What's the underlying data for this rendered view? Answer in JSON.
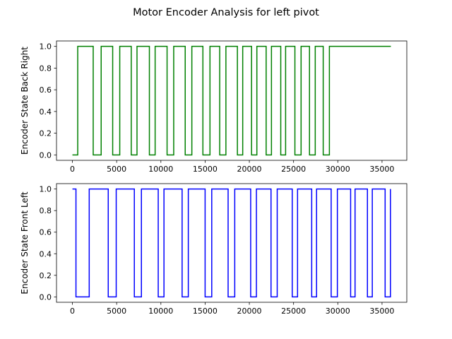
{
  "title": "Motor Encoder Analysis for left pivot",
  "chart_data": [
    {
      "type": "line",
      "step": true,
      "ylabel": "Encoder State Back Right",
      "xlim": [
        -1800,
        37800
      ],
      "ylim": [
        -0.05,
        1.05
      ],
      "xticks": [
        0,
        5000,
        10000,
        15000,
        20000,
        25000,
        30000,
        35000
      ],
      "yticks": [
        0.0,
        0.2,
        0.4,
        0.6,
        0.8,
        1.0
      ],
      "xtick_labels": [
        "0",
        "5000",
        "10000",
        "15000",
        "20000",
        "25000",
        "30000",
        "35000"
      ],
      "ytick_labels": [
        "0.0",
        "0.2",
        "0.4",
        "0.6",
        "0.8",
        "1.0"
      ],
      "grid": false,
      "series": [
        {
          "color": "#008000",
          "x": [
            0,
            600,
            600,
            2350,
            2350,
            3250,
            3250,
            4550,
            4550,
            5350,
            5350,
            6650,
            6650,
            7300,
            7300,
            8700,
            8700,
            9350,
            9350,
            10700,
            10700,
            11450,
            11450,
            12750,
            12750,
            13500,
            13500,
            14750,
            14750,
            15550,
            15550,
            16650,
            16650,
            17350,
            17350,
            18650,
            18650,
            19250,
            19250,
            20250,
            20250,
            20850,
            20850,
            21900,
            21900,
            22500,
            22500,
            23550,
            23550,
            24100,
            24100,
            25150,
            25150,
            25850,
            25850,
            26800,
            26800,
            27450,
            27450,
            28350,
            28350,
            29050,
            29050,
            30000,
            30000,
            36000
          ],
          "y": [
            0,
            0,
            1,
            1,
            0,
            0,
            1,
            1,
            0,
            0,
            1,
            1,
            0,
            0,
            1,
            1,
            0,
            0,
            1,
            1,
            0,
            0,
            1,
            1,
            0,
            0,
            1,
            1,
            0,
            0,
            1,
            1,
            0,
            0,
            1,
            1,
            0,
            0,
            1,
            1,
            0,
            0,
            1,
            1,
            0,
            0,
            1,
            1,
            0,
            0,
            1,
            1,
            0,
            0,
            1,
            1,
            0,
            0,
            1,
            1,
            0,
            0,
            1,
            1,
            1,
            1
          ]
        }
      ]
    },
    {
      "type": "line",
      "step": true,
      "ylabel": "Encoder State Front Left",
      "xlim": [
        -1800,
        37800
      ],
      "ylim": [
        -0.05,
        1.05
      ],
      "xticks": [
        0,
        5000,
        10000,
        15000,
        20000,
        25000,
        30000,
        35000
      ],
      "yticks": [
        0.0,
        0.2,
        0.4,
        0.6,
        0.8,
        1.0
      ],
      "xtick_labels": [
        "0",
        "5000",
        "10000",
        "15000",
        "20000",
        "25000",
        "30000",
        "35000"
      ],
      "ytick_labels": [
        "0.0",
        "0.2",
        "0.4",
        "0.6",
        "0.8",
        "1.0"
      ],
      "grid": false,
      "series": [
        {
          "color": "#0000ff",
          "x": [
            0,
            400,
            400,
            1900,
            1900,
            4050,
            4050,
            4950,
            4950,
            7000,
            7000,
            7800,
            7800,
            9700,
            9700,
            10350,
            10350,
            12400,
            12400,
            13100,
            13100,
            15000,
            15000,
            15750,
            15750,
            17600,
            17600,
            18350,
            18350,
            20150,
            20150,
            20800,
            20800,
            22450,
            22450,
            23150,
            23150,
            24850,
            24850,
            25450,
            25450,
            27050,
            27050,
            27600,
            27600,
            29250,
            29250,
            29950,
            29950,
            31450,
            31450,
            31950,
            31950,
            33350,
            33350,
            33900,
            33900,
            35350,
            35350,
            35950,
            35950
          ],
          "y": [
            1,
            1,
            0,
            0,
            1,
            1,
            0,
            0,
            1,
            1,
            0,
            0,
            1,
            1,
            0,
            0,
            1,
            1,
            0,
            0,
            1,
            1,
            0,
            0,
            1,
            1,
            0,
            0,
            1,
            1,
            0,
            0,
            1,
            1,
            0,
            0,
            1,
            1,
            0,
            0,
            1,
            1,
            0,
            0,
            1,
            1,
            0,
            0,
            1,
            1,
            0,
            0,
            1,
            1,
            0,
            0,
            1,
            1,
            0,
            0,
            1
          ]
        }
      ]
    }
  ]
}
